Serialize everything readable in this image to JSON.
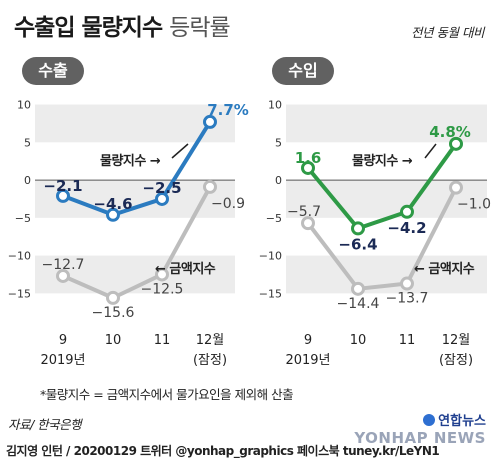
{
  "header": {
    "title": "수출입 물량지수",
    "title_light": "등락률",
    "subtitle": "전년 동월 대비"
  },
  "footer": {
    "note": "*물량지수 = 금액지수에서 물가요인을 제외해 산출",
    "source": "자료/ 한국은행",
    "credit": "김지영 인턴 / 20200129 트위터 @yonhap_graphics  페이스북 tuney.kr/LeYN1",
    "logo_text": "연합뉴스",
    "watermark": "YONHAP NEWS"
  },
  "chart_data": [
    {
      "type": "line",
      "panel_label": "수출",
      "categories": [
        "9",
        "10",
        "11",
        "12월"
      ],
      "category_sublabels": [
        "2019년",
        "",
        "",
        "(잠정)"
      ],
      "y_ticks": [
        10,
        5,
        0,
        -5,
        -10,
        -15
      ],
      "ylim": [
        -18,
        11
      ],
      "series": [
        {
          "name": "물량지수",
          "values": [
            -2.1,
            -4.6,
            -2.5,
            7.7
          ],
          "labels": [
            "−2.1",
            "−4.6",
            "−2.5",
            "7.7%"
          ],
          "color": "#2b7bc0"
        },
        {
          "name": "금액지수",
          "values": [
            -12.7,
            -15.6,
            -12.5,
            -0.9
          ],
          "labels": [
            "−12.7",
            "−15.6",
            "−12.5",
            "−0.9"
          ],
          "color": "#bdbdbd"
        }
      ]
    },
    {
      "type": "line",
      "panel_label": "수입",
      "categories": [
        "9",
        "10",
        "11",
        "12월"
      ],
      "category_sublabels": [
        "2019년",
        "",
        "",
        "(잠정)"
      ],
      "y_ticks": [
        10,
        5,
        0,
        -5,
        -10,
        -15
      ],
      "ylim": [
        -18,
        11
      ],
      "series": [
        {
          "name": "물량지수",
          "values": [
            1.6,
            -6.4,
            -4.2,
            4.8
          ],
          "labels": [
            "1.6",
            "−6.4",
            "−4.2",
            "4.8%"
          ],
          "color": "#2e9a46"
        },
        {
          "name": "금액지수",
          "values": [
            -5.7,
            -14.4,
            -13.7,
            -1.0
          ],
          "labels": [
            "−5.7",
            "−14.4",
            "−13.7",
            "−1.0"
          ],
          "color": "#bdbdbd"
        }
      ]
    }
  ]
}
